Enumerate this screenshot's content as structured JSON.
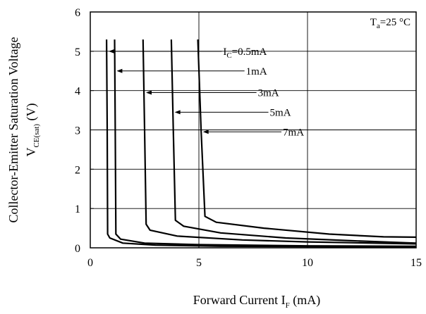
{
  "chart_data": {
    "type": "line",
    "title": "",
    "xlabel": "Forward Current I",
    "xlabel_sub": "F",
    "xlabel_unit": " (mA)",
    "ylabel_line1": "Collector-Emitter Saturation Voltage",
    "ylabel_line2": "V",
    "ylabel_line2_sub": "CE(sat)",
    "ylabel_line2_unit": " (V)",
    "xlim": [
      0,
      15
    ],
    "ylim": [
      0,
      6
    ],
    "x_ticks": [
      0,
      5,
      10,
      15
    ],
    "y_ticks": [
      0,
      1,
      2,
      3,
      4,
      5,
      6
    ],
    "x_tick_labels": [
      "0",
      "5",
      "10",
      "15"
    ],
    "y_tick_labels": [
      "0",
      "1",
      "2",
      "3",
      "4",
      "5",
      "6"
    ],
    "grid": true,
    "condition": {
      "text_main": "T",
      "text_sub": "a",
      "text_rest": "=25 °C"
    },
    "series": [
      {
        "name": "I_C=0.5mA",
        "points": [
          [
            0.75,
            5.3
          ],
          [
            0.78,
            3.0
          ],
          [
            0.8,
            0.35
          ],
          [
            0.9,
            0.25
          ],
          [
            1.5,
            0.12
          ],
          [
            3,
            0.07
          ],
          [
            6,
            0.04
          ],
          [
            10,
            0.03
          ],
          [
            15,
            0.02
          ]
        ]
      },
      {
        "name": "1mA",
        "points": [
          [
            1.12,
            5.3
          ],
          [
            1.15,
            3.0
          ],
          [
            1.18,
            0.35
          ],
          [
            1.4,
            0.22
          ],
          [
            2.5,
            0.12
          ],
          [
            5,
            0.08
          ],
          [
            10,
            0.05
          ],
          [
            15,
            0.04
          ]
        ]
      },
      {
        "name": "3mA",
        "points": [
          [
            2.43,
            5.3
          ],
          [
            2.5,
            3.0
          ],
          [
            2.57,
            0.6
          ],
          [
            2.75,
            0.45
          ],
          [
            4,
            0.3
          ],
          [
            7,
            0.2
          ],
          [
            10,
            0.15
          ],
          [
            15,
            0.1
          ]
        ]
      },
      {
        "name": "5mA",
        "points": [
          [
            3.73,
            5.3
          ],
          [
            3.82,
            3.0
          ],
          [
            3.92,
            0.7
          ],
          [
            4.3,
            0.55
          ],
          [
            6,
            0.38
          ],
          [
            9,
            0.25
          ],
          [
            12,
            0.18
          ],
          [
            15,
            0.12
          ]
        ]
      },
      {
        "name": "7mA",
        "points": [
          [
            4.95,
            5.3
          ],
          [
            5.1,
            3.0
          ],
          [
            5.28,
            0.8
          ],
          [
            5.8,
            0.65
          ],
          [
            8,
            0.5
          ],
          [
            11,
            0.35
          ],
          [
            13.5,
            0.28
          ],
          [
            15,
            0.27
          ]
        ]
      }
    ],
    "annotations": [
      {
        "label_main": "I",
        "label_sub": "C",
        "label_rest": "=0.5mA",
        "arrow_tip": [
          0.78,
          5.0
        ],
        "arrow_tail": [
          6.05,
          5.0
        ]
      },
      {
        "label_main": "1mA",
        "label_sub": "",
        "label_rest": "",
        "arrow_tip": [
          1.15,
          4.5
        ],
        "arrow_tail": [
          7.1,
          4.5
        ]
      },
      {
        "label_main": "3mA",
        "label_sub": "",
        "label_rest": "",
        "arrow_tip": [
          2.5,
          3.95
        ],
        "arrow_tail": [
          7.65,
          3.95
        ]
      },
      {
        "label_main": "5mA",
        "label_sub": "",
        "label_rest": "",
        "arrow_tip": [
          3.82,
          3.45
        ],
        "arrow_tail": [
          8.2,
          3.45
        ]
      },
      {
        "label_main": "7mA",
        "label_sub": "",
        "label_rest": "",
        "arrow_tip": [
          5.12,
          2.95
        ],
        "arrow_tail": [
          8.8,
          2.95
        ]
      }
    ]
  }
}
